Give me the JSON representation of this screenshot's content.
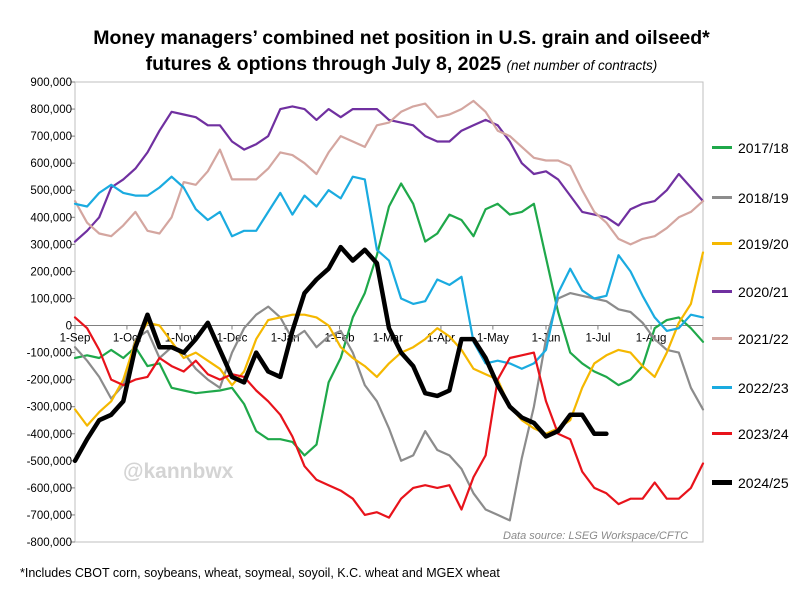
{
  "title_line1": "Money managers’ combined net position in U.S. grain and oilseed*",
  "title_line2": "futures & options through July 8, 2025",
  "title_subtitle": "(net number of contracts)",
  "footnote": "*Includes CBOT corn, soybeans, wheat, soymeal, soyoil, K.C. wheat and MGEX wheat",
  "source": "Data source: LSEG Workspace/CFTC",
  "watermark": "@kannbwx",
  "chart_data": {
    "type": "line",
    "x_unit": "week",
    "ylim": [
      -800000,
      900000
    ],
    "yticks": [
      900000,
      800000,
      700000,
      600000,
      500000,
      400000,
      300000,
      200000,
      100000,
      0,
      -100000,
      -200000,
      -300000,
      -400000,
      -500000,
      -600000,
      -700000,
      -800000
    ],
    "ytick_labels": [
      "900,000",
      "800,000",
      "700,000",
      "600,000",
      "500,000",
      "400,000",
      "300,000",
      "200,000",
      "100,000",
      "0",
      "-100,000",
      "-200,000",
      "-300,000",
      "-400,000",
      "-500,000",
      "-600,000",
      "-700,000",
      "-800,000"
    ],
    "xticks": [
      {
        "label": "1-Sep",
        "week": 0
      },
      {
        "label": "1-Oct",
        "week": 4.3
      },
      {
        "label": "1-Nov",
        "week": 8.7
      },
      {
        "label": "1-Dec",
        "week": 13
      },
      {
        "label": "1-Jan",
        "week": 17.4
      },
      {
        "label": "1-Feb",
        "week": 21.9
      },
      {
        "label": "1-Mar",
        "week": 25.9
      },
      {
        "label": "1-Apr",
        "week": 30.3
      },
      {
        "label": "1-May",
        "week": 34.6
      },
      {
        "label": "1-Jun",
        "week": 39
      },
      {
        "label": "1-Jul",
        "week": 43.3
      },
      {
        "label": "1-Aug",
        "week": 47.7
      }
    ],
    "grid": false,
    "legend_position": "right",
    "series": [
      {
        "name": "2017/18",
        "color": "#1fa84a",
        "width": 2.2,
        "values": [
          -120000,
          -110000,
          -120000,
          -90000,
          -120000,
          -80000,
          -150000,
          -140000,
          -230000,
          -240000,
          -250000,
          -245000,
          -240000,
          -230000,
          -290000,
          -390000,
          -420000,
          -420000,
          -430000,
          -480000,
          -440000,
          -210000,
          -120000,
          30000,
          120000,
          260000,
          440000,
          525000,
          450000,
          310000,
          340000,
          410000,
          390000,
          330000,
          430000,
          450000,
          410000,
          420000,
          450000,
          250000,
          50000,
          -100000,
          -140000,
          -170000,
          -190000,
          -220000,
          -200000,
          -150000,
          -10000,
          20000,
          30000,
          -10000,
          -60000
        ]
      },
      {
        "name": "2018/19",
        "color": "#8c8c8c",
        "width": 2.2,
        "values": [
          -80000,
          -130000,
          -190000,
          -270000,
          -220000,
          -50000,
          -20000,
          -120000,
          -80000,
          -100000,
          -160000,
          -200000,
          -230000,
          -100000,
          -10000,
          40000,
          70000,
          30000,
          -50000,
          -20000,
          -80000,
          -40000,
          -20000,
          -100000,
          -220000,
          -280000,
          -380000,
          -500000,
          -480000,
          -390000,
          -460000,
          -480000,
          -530000,
          -620000,
          -680000,
          -700000,
          -720000,
          -490000,
          -300000,
          -50000,
          100000,
          120000,
          110000,
          100000,
          90000,
          60000,
          50000,
          10000,
          -50000,
          -90000,
          -100000,
          -230000,
          -310000
        ]
      },
      {
        "name": "2019/20",
        "color": "#f5b800",
        "width": 2.2,
        "values": [
          -310000,
          -370000,
          -320000,
          -280000,
          -200000,
          -60000,
          10000,
          0,
          -60000,
          -120000,
          -100000,
          -130000,
          -160000,
          -220000,
          -170000,
          -50000,
          20000,
          30000,
          40000,
          40000,
          30000,
          0,
          -80000,
          -120000,
          -150000,
          -190000,
          -140000,
          -100000,
          -80000,
          -50000,
          -10000,
          -40000,
          -90000,
          -160000,
          -180000,
          -200000,
          -300000,
          -350000,
          -380000,
          -400000,
          -380000,
          -350000,
          -230000,
          -140000,
          -110000,
          -90000,
          -100000,
          -150000,
          -190000,
          -100000,
          10000,
          80000,
          270000
        ]
      },
      {
        "name": "2020/21",
        "color": "#7030a0",
        "width": 2.2,
        "values": [
          310000,
          350000,
          400000,
          510000,
          540000,
          580000,
          640000,
          720000,
          790000,
          780000,
          770000,
          740000,
          740000,
          680000,
          650000,
          670000,
          700000,
          800000,
          810000,
          800000,
          760000,
          800000,
          770000,
          800000,
          800000,
          800000,
          760000,
          750000,
          740000,
          700000,
          680000,
          680000,
          720000,
          740000,
          760000,
          740000,
          680000,
          600000,
          560000,
          570000,
          540000,
          480000,
          420000,
          410000,
          400000,
          370000,
          430000,
          450000,
          460000,
          500000,
          560000,
          510000,
          460000
        ]
      },
      {
        "name": "2021/22",
        "color": "#d4a6a0",
        "width": 2.2,
        "values": [
          460000,
          380000,
          340000,
          330000,
          370000,
          420000,
          350000,
          340000,
          400000,
          530000,
          520000,
          570000,
          650000,
          540000,
          540000,
          540000,
          580000,
          640000,
          630000,
          600000,
          560000,
          640000,
          700000,
          680000,
          660000,
          740000,
          750000,
          790000,
          810000,
          820000,
          770000,
          780000,
          800000,
          830000,
          790000,
          720000,
          700000,
          660000,
          620000,
          610000,
          610000,
          590000,
          500000,
          420000,
          380000,
          320000,
          300000,
          320000,
          330000,
          360000,
          400000,
          420000,
          460000
        ]
      },
      {
        "name": "2022/23",
        "color": "#1aabe0",
        "width": 2.2,
        "values": [
          450000,
          440000,
          490000,
          520000,
          490000,
          480000,
          480000,
          510000,
          550000,
          510000,
          430000,
          390000,
          420000,
          330000,
          350000,
          350000,
          420000,
          490000,
          410000,
          480000,
          440000,
          500000,
          470000,
          550000,
          540000,
          280000,
          240000,
          100000,
          80000,
          90000,
          170000,
          150000,
          180000,
          -60000,
          -140000,
          -130000,
          -140000,
          -160000,
          -140000,
          -90000,
          120000,
          210000,
          130000,
          100000,
          110000,
          260000,
          200000,
          110000,
          30000,
          -20000,
          -10000,
          40000,
          30000
        ]
      },
      {
        "name": "2023/24",
        "color": "#e8131b",
        "width": 2.2,
        "values": [
          30000,
          -10000,
          -90000,
          -200000,
          -220000,
          -200000,
          -190000,
          -120000,
          -150000,
          -170000,
          -130000,
          -180000,
          -200000,
          -180000,
          -190000,
          -240000,
          -280000,
          -330000,
          -410000,
          -520000,
          -570000,
          -590000,
          -610000,
          -640000,
          -700000,
          -690000,
          -710000,
          -640000,
          -600000,
          -590000,
          -600000,
          -590000,
          -680000,
          -560000,
          -480000,
          -200000,
          -120000,
          -110000,
          -100000,
          -280000,
          -400000,
          -420000,
          -540000,
          -600000,
          -620000,
          -660000,
          -640000,
          -640000,
          -580000,
          -640000,
          -640000,
          -600000,
          -510000
        ]
      },
      {
        "name": "2024/25",
        "color": "#000000",
        "width": 4.5,
        "values": [
          -500000,
          -420000,
          -350000,
          -330000,
          -280000,
          -80000,
          40000,
          -80000,
          -80000,
          -100000,
          -50000,
          10000,
          -90000,
          -190000,
          -210000,
          -100000,
          -170000,
          -190000,
          -20000,
          120000,
          170000,
          210000,
          290000,
          240000,
          280000,
          230000,
          -10000,
          -100000,
          -150000,
          -250000,
          -260000,
          -240000,
          -50000,
          -50000,
          -120000,
          -220000,
          -300000,
          -340000,
          -360000,
          -410000,
          -390000,
          -330000,
          -330000,
          -400000,
          -400000
        ]
      }
    ]
  }
}
